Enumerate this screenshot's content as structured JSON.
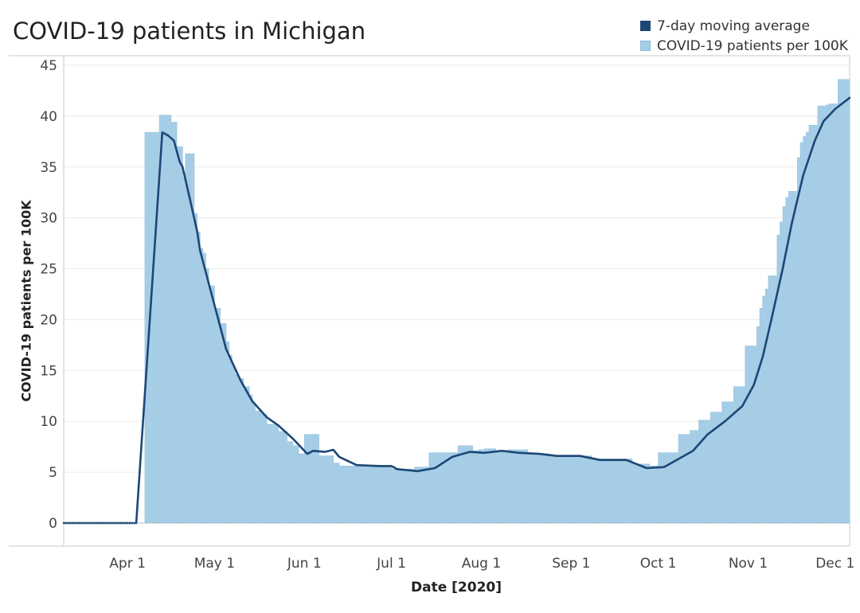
{
  "chart_data": {
    "type": "area",
    "title": "COVID-19 patients in Michigan",
    "xlabel": "Date [2020]",
    "ylabel": "COVID-19 patients per 100K",
    "ylim": [
      0,
      45
    ],
    "yticks": [
      0,
      5,
      10,
      15,
      20,
      25,
      30,
      35,
      40,
      45
    ],
    "xlim": [
      "2020-03-10",
      "2020-12-06"
    ],
    "xticks": [
      {
        "date": "2020-04-01",
        "label": "Apr 1"
      },
      {
        "date": "2020-05-01",
        "label": "May 1"
      },
      {
        "date": "2020-06-01",
        "label": "Jun 1"
      },
      {
        "date": "2020-07-01",
        "label": "Jul 1"
      },
      {
        "date": "2020-08-01",
        "label": "Aug 1"
      },
      {
        "date": "2020-09-01",
        "label": "Sep 1"
      },
      {
        "date": "2020-10-01",
        "label": "Oct 1"
      },
      {
        "date": "2020-11-01",
        "label": "Nov 1"
      },
      {
        "date": "2020-12-01",
        "label": "Dec 1"
      }
    ],
    "grid": true,
    "legend_position": "top-right",
    "series": [
      {
        "name": "COVID-19 patients per 100K",
        "style": "step-area",
        "color": "#a6cde6",
        "points": [
          [
            "2020-03-10",
            0
          ],
          [
            "2020-04-07",
            38.4
          ],
          [
            "2020-04-12",
            40.1
          ],
          [
            "2020-04-16",
            39.4
          ],
          [
            "2020-04-18",
            37.0
          ],
          [
            "2020-04-20",
            34.0
          ],
          [
            "2020-04-21",
            36.3
          ],
          [
            "2020-04-24",
            30.4
          ],
          [
            "2020-04-25",
            28.6
          ],
          [
            "2020-04-26",
            27.0
          ],
          [
            "2020-04-27",
            26.5
          ],
          [
            "2020-04-28",
            25.0
          ],
          [
            "2020-04-29",
            23.3
          ],
          [
            "2020-05-01",
            21.1
          ],
          [
            "2020-05-03",
            19.6
          ],
          [
            "2020-05-05",
            17.8
          ],
          [
            "2020-05-06",
            16.5
          ],
          [
            "2020-05-07",
            15.5
          ],
          [
            "2020-05-08",
            14.6
          ],
          [
            "2020-05-09",
            14.2
          ],
          [
            "2020-05-11",
            13.4
          ],
          [
            "2020-05-13",
            12.6
          ],
          [
            "2020-05-14",
            11.8
          ],
          [
            "2020-05-15",
            11.0
          ],
          [
            "2020-05-17",
            10.7
          ],
          [
            "2020-05-19",
            9.7
          ],
          [
            "2020-05-23",
            9.0
          ],
          [
            "2020-05-26",
            8.0
          ],
          [
            "2020-05-28",
            7.6
          ],
          [
            "2020-05-30",
            6.8
          ],
          [
            "2020-06-01",
            8.7
          ],
          [
            "2020-06-06",
            6.6
          ],
          [
            "2020-06-11",
            5.9
          ],
          [
            "2020-06-13",
            5.6
          ],
          [
            "2020-06-23",
            5.5
          ],
          [
            "2020-07-01",
            5.3
          ],
          [
            "2020-07-09",
            5.5
          ],
          [
            "2020-07-14",
            6.9
          ],
          [
            "2020-07-24",
            7.6
          ],
          [
            "2020-07-29",
            7.1
          ],
          [
            "2020-07-31",
            7.2
          ],
          [
            "2020-08-02",
            7.3
          ],
          [
            "2020-08-06",
            7.0
          ],
          [
            "2020-08-10",
            7.2
          ],
          [
            "2020-08-17",
            6.8
          ],
          [
            "2020-08-24",
            6.6
          ],
          [
            "2020-09-01",
            6.6
          ],
          [
            "2020-09-08",
            6.3
          ],
          [
            "2020-09-15",
            6.3
          ],
          [
            "2020-09-22",
            5.8
          ],
          [
            "2020-09-28",
            5.6
          ],
          [
            "2020-10-01",
            6.9
          ],
          [
            "2020-10-08",
            8.7
          ],
          [
            "2020-10-12",
            9.1
          ],
          [
            "2020-10-15",
            10.1
          ],
          [
            "2020-10-19",
            10.9
          ],
          [
            "2020-10-23",
            11.9
          ],
          [
            "2020-10-27",
            13.4
          ],
          [
            "2020-10-31",
            17.4
          ],
          [
            "2020-11-04",
            19.3
          ],
          [
            "2020-11-05",
            21.1
          ],
          [
            "2020-11-06",
            22.3
          ],
          [
            "2020-11-07",
            23.0
          ],
          [
            "2020-11-08",
            24.3
          ],
          [
            "2020-11-11",
            28.3
          ],
          [
            "2020-11-12",
            29.6
          ],
          [
            "2020-11-13",
            31.1
          ],
          [
            "2020-11-14",
            32.0
          ],
          [
            "2020-11-15",
            32.6
          ],
          [
            "2020-11-18",
            35.9
          ],
          [
            "2020-11-19",
            37.4
          ],
          [
            "2020-11-20",
            38.0
          ],
          [
            "2020-11-21",
            38.4
          ],
          [
            "2020-11-22",
            39.1
          ],
          [
            "2020-11-25",
            41.0
          ],
          [
            "2020-11-28",
            41.1
          ],
          [
            "2020-11-29",
            41.2
          ],
          [
            "2020-12-02",
            43.6
          ],
          [
            "2020-12-06",
            43.6
          ]
        ]
      },
      {
        "name": "7-day moving average",
        "style": "line",
        "color": "#1c4775",
        "points": [
          [
            "2020-03-10",
            0
          ],
          [
            "2020-04-04",
            0
          ],
          [
            "2020-04-13",
            38.4
          ],
          [
            "2020-04-15",
            38.1
          ],
          [
            "2020-04-17",
            37.6
          ],
          [
            "2020-04-19",
            35.5
          ],
          [
            "2020-04-20",
            35.0
          ],
          [
            "2020-04-22",
            32.5
          ],
          [
            "2020-04-25",
            28.7
          ],
          [
            "2020-04-26",
            26.8
          ],
          [
            "2020-04-30",
            22.5
          ],
          [
            "2020-05-05",
            17.1
          ],
          [
            "2020-05-10",
            14.0
          ],
          [
            "2020-05-14",
            12.0
          ],
          [
            "2020-05-19",
            10.4
          ],
          [
            "2020-05-23",
            9.6
          ],
          [
            "2020-05-28",
            8.3
          ],
          [
            "2020-06-02",
            6.8
          ],
          [
            "2020-06-04",
            7.1
          ],
          [
            "2020-06-08",
            7.0
          ],
          [
            "2020-06-11",
            7.2
          ],
          [
            "2020-06-13",
            6.5
          ],
          [
            "2020-06-19",
            5.7
          ],
          [
            "2020-06-27",
            5.6
          ],
          [
            "2020-07-01",
            5.6
          ],
          [
            "2020-07-03",
            5.3
          ],
          [
            "2020-07-10",
            5.1
          ],
          [
            "2020-07-16",
            5.4
          ],
          [
            "2020-07-22",
            6.5
          ],
          [
            "2020-07-28",
            7.0
          ],
          [
            "2020-08-02",
            6.9
          ],
          [
            "2020-08-08",
            7.1
          ],
          [
            "2020-08-14",
            6.9
          ],
          [
            "2020-08-21",
            6.8
          ],
          [
            "2020-08-27",
            6.6
          ],
          [
            "2020-09-04",
            6.6
          ],
          [
            "2020-09-11",
            6.2
          ],
          [
            "2020-09-20",
            6.2
          ],
          [
            "2020-09-27",
            5.4
          ],
          [
            "2020-10-03",
            5.5
          ],
          [
            "2020-10-13",
            7.1
          ],
          [
            "2020-10-18",
            8.7
          ],
          [
            "2020-10-24",
            10.0
          ],
          [
            "2020-10-30",
            11.5
          ],
          [
            "2020-11-03",
            13.6
          ],
          [
            "2020-11-06",
            16.3
          ],
          [
            "2020-11-09",
            20.0
          ],
          [
            "2020-11-13",
            25.1
          ],
          [
            "2020-11-16",
            29.4
          ],
          [
            "2020-11-20",
            34.2
          ],
          [
            "2020-11-24",
            37.6
          ],
          [
            "2020-11-27",
            39.5
          ],
          [
            "2020-12-01",
            40.7
          ],
          [
            "2020-12-06",
            41.8
          ]
        ]
      }
    ]
  }
}
